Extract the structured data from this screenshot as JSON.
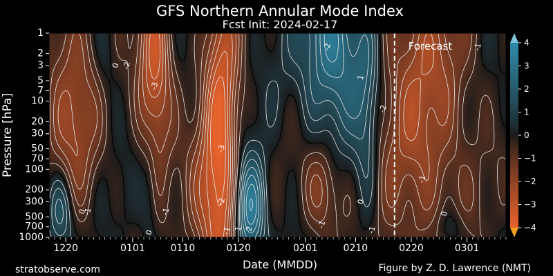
{
  "chart_data": {
    "type": "heatmap",
    "title": "GFS Northern Annular Mode Index",
    "subtitle": "Fcst Init: 2024-02-17",
    "xlabel": "Date (MMDD)",
    "ylabel": "Pressure [hPa]",
    "y_scale": "log",
    "y_inverted": true,
    "ylim": [
      1000,
      1
    ],
    "x_range": [
      "2023-12-17",
      "2024-03-08"
    ],
    "x_ticks": [
      {
        "date": "2023-12-20",
        "label": "1220"
      },
      {
        "date": "2024-01-01",
        "label": "0101"
      },
      {
        "date": "2024-01-10",
        "label": "0110"
      },
      {
        "date": "2024-01-20",
        "label": "0120"
      },
      {
        "date": "2024-02-01",
        "label": "0201"
      },
      {
        "date": "2024-02-10",
        "label": "0210"
      },
      {
        "date": "2024-02-20",
        "label": "0220"
      },
      {
        "date": "2024-03-01",
        "label": "0301"
      }
    ],
    "y_ticks": [
      1,
      2,
      3,
      5,
      7,
      10,
      20,
      30,
      50,
      70,
      100,
      200,
      300,
      500,
      700,
      1000
    ],
    "forecast_start": "2024-02-17",
    "forecast_label": "Forecast",
    "colorbar": {
      "range": [
        -4,
        4
      ],
      "ticks": [
        4,
        3,
        2,
        1,
        0,
        -1,
        -2,
        -3,
        -4
      ],
      "positive_color": "#2f8aa8",
      "negative_color": "#e8622c",
      "neutral_color": "#1a1a1a"
    },
    "contour_labels": [
      {
        "date": "2023-12-29",
        "p": 3,
        "value": "0"
      },
      {
        "date": "2023-12-31",
        "p": 3,
        "value": "-2"
      },
      {
        "date": "2024-01-05",
        "p": 6,
        "value": "-3"
      },
      {
        "date": "2024-01-17",
        "p": 50,
        "value": "-3"
      },
      {
        "date": "2024-01-17",
        "p": 300,
        "value": "-2"
      },
      {
        "date": "2024-01-18",
        "p": 800,
        "value": "-1"
      },
      {
        "date": "2024-01-20",
        "p": 750,
        "value": "1"
      },
      {
        "date": "2024-01-22",
        "p": 750,
        "value": "2"
      },
      {
        "date": "2024-02-05",
        "p": 1.6,
        "value": "-2"
      },
      {
        "date": "2024-02-11",
        "p": 4.5,
        "value": "1"
      },
      {
        "date": "2024-02-15",
        "p": 13,
        "value": "-2"
      },
      {
        "date": "2024-02-11",
        "p": 300,
        "value": "0"
      },
      {
        "date": "2024-02-13",
        "p": 780,
        "value": "-1"
      },
      {
        "date": "2023-12-23",
        "p": 420,
        "value": "0"
      },
      {
        "date": "2023-12-24",
        "p": 420,
        "value": "-1"
      },
      {
        "date": "2024-01-07",
        "p": 420,
        "value": "-1"
      },
      {
        "date": "2024-01-04",
        "p": 850,
        "value": "0"
      },
      {
        "date": "2024-02-04",
        "p": 650,
        "value": "-1"
      },
      {
        "date": "2024-02-22",
        "p": 140,
        "value": "-1"
      },
      {
        "date": "2024-02-26",
        "p": 450,
        "value": "0"
      },
      {
        "date": "2024-03-03",
        "p": 1.6,
        "value": "-1"
      }
    ],
    "anomaly_blobs": [
      {
        "date": "2024-01-05",
        "p": 4,
        "value": -3.4,
        "sd": 2.2,
        "sl": 1.0
      },
      {
        "date": "2024-01-17",
        "p": 40,
        "value": -3.6,
        "sd": 2.2,
        "sl": 1.8
      },
      {
        "date": "2024-01-14",
        "p": 300,
        "value": -1.8,
        "sd": 2.5,
        "sl": 0.8
      },
      {
        "date": "2024-01-22",
        "p": 400,
        "value": 3.6,
        "sd": 2.0,
        "sl": 0.55
      },
      {
        "date": "2024-02-06",
        "p": 1.5,
        "value": 3.3,
        "sd": 4.0,
        "sl": 0.9
      },
      {
        "date": "2024-02-12",
        "p": 15,
        "value": 1.6,
        "sd": 1.6,
        "sl": 1.2
      },
      {
        "date": "2024-02-04",
        "p": 200,
        "value": -2.0,
        "sd": 2.3,
        "sl": 0.5
      },
      {
        "date": "2024-02-22",
        "p": 10,
        "value": -2.3,
        "sd": 6.0,
        "sl": 1.8
      },
      {
        "date": "2023-12-21",
        "p": 12,
        "value": -2.2,
        "sd": 3.5,
        "sl": 1.2
      },
      {
        "date": "2023-12-19",
        "p": 400,
        "value": 2.5,
        "sd": 1.8,
        "sl": 0.45
      },
      {
        "date": "2024-01-04",
        "p": 250,
        "value": 1.0,
        "sd": 1.2,
        "sl": 0.6
      },
      {
        "date": "2024-02-27",
        "p": 800,
        "value": 1.2,
        "sd": 2.0,
        "sl": 0.25
      },
      {
        "date": "2023-12-27",
        "p": 2.5,
        "value": 0.8,
        "sd": 1.5,
        "sl": 0.5
      }
    ]
  },
  "footer": {
    "left": "stratobserve.com",
    "right": "Figure by Z. D. Lawrence (NMT)"
  }
}
